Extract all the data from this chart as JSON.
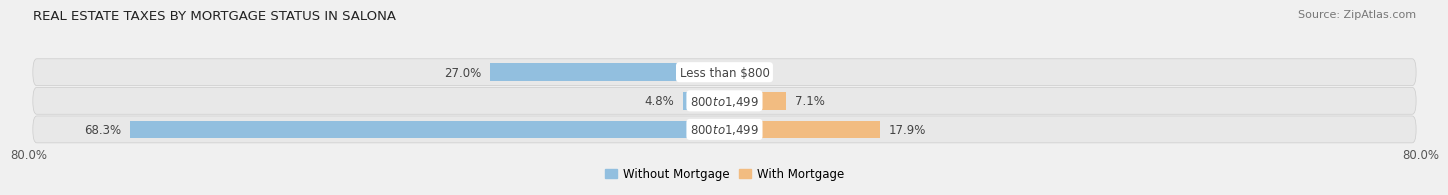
{
  "title": "REAL ESTATE TAXES BY MORTGAGE STATUS IN SALONA",
  "source": "Source: ZipAtlas.com",
  "rows": [
    {
      "label": "Less than $800",
      "without_mortgage": 27.0,
      "with_mortgage": 0.0
    },
    {
      "label": "$800 to $1,499",
      "without_mortgage": 4.8,
      "with_mortgage": 7.1
    },
    {
      "label": "$800 to $1,499",
      "without_mortgage": 68.3,
      "with_mortgage": 17.9
    }
  ],
  "xlim_left": -80.0,
  "xlim_right": 80.0,
  "x_axis_left_label": "80.0%",
  "x_axis_right_label": "80.0%",
  "color_without": "#92bfdf",
  "color_with": "#f2bc81",
  "bar_height": 0.62,
  "row_bg_color": "#e8e8e8",
  "bar_label_fontsize": 8.5,
  "title_fontsize": 9.5,
  "legend_fontsize": 8.5,
  "source_fontsize": 8.0,
  "bg_color": "#f0f0f0",
  "text_color": "#444444",
  "label_bg_color": "#ffffff"
}
